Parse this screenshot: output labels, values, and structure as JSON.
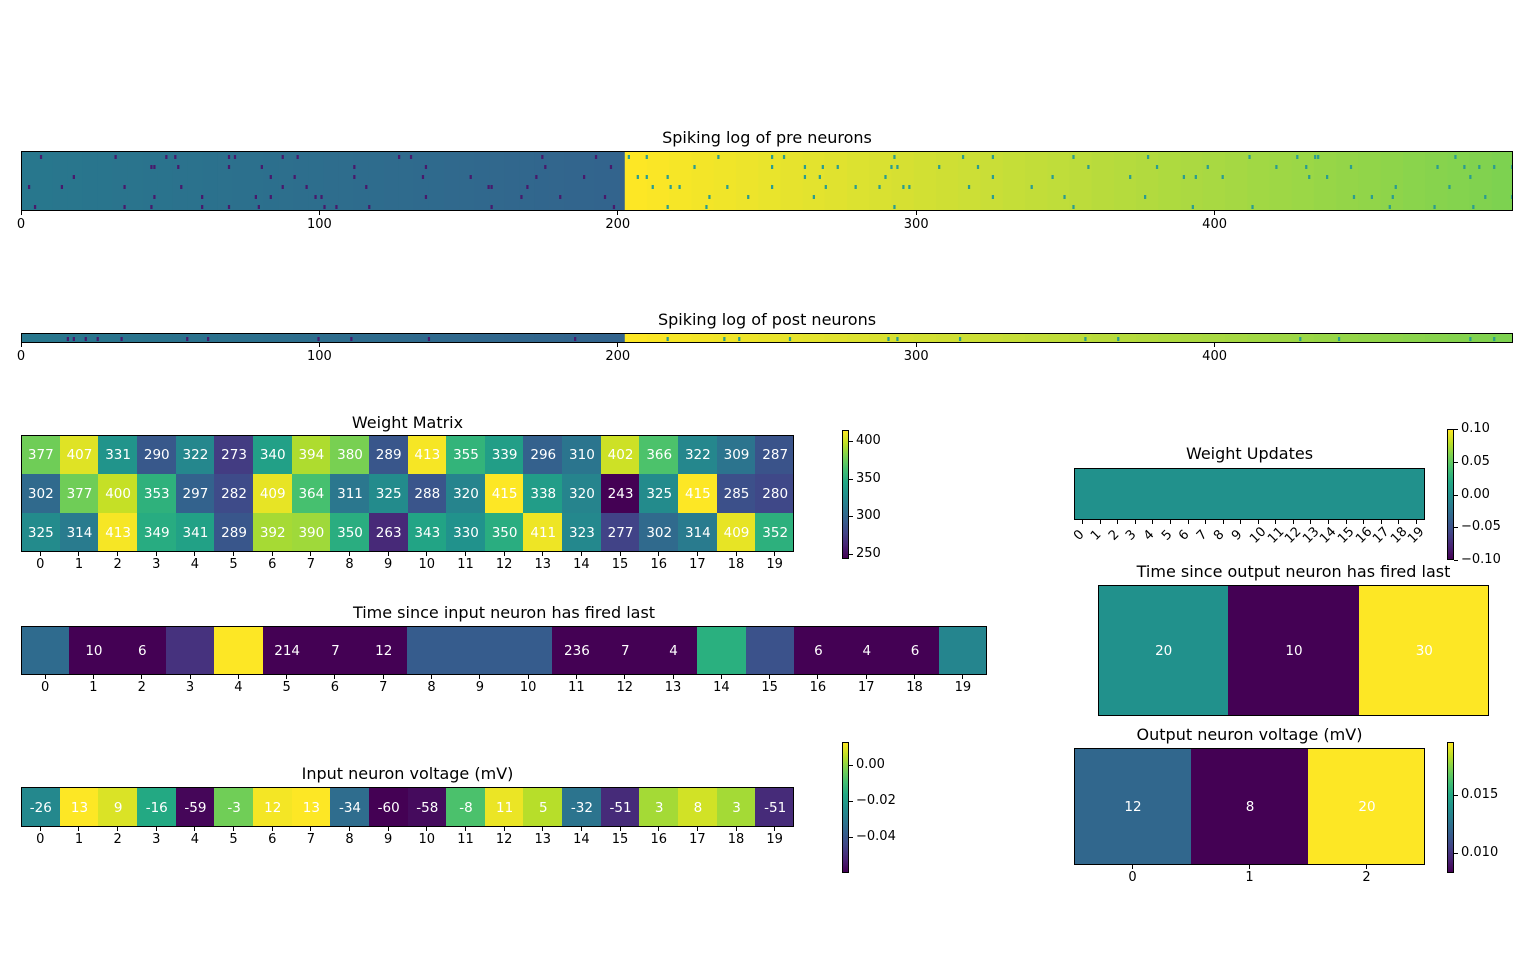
{
  "spike_pre": {
    "title": "Spiking log of pre neurons",
    "xticks": [
      "0",
      "100",
      "200",
      "300",
      "400"
    ],
    "xtick_values": [
      0,
      100,
      200,
      300,
      400
    ],
    "x_range": [
      0,
      500
    ],
    "rows": 6,
    "regions": [
      {
        "from": 0,
        "to": 202,
        "color_start": "#28778d",
        "color_end": "#33638d",
        "spike_color": "#481a6c"
      },
      {
        "from": 202,
        "to": 500,
        "color_start": "#fde725",
        "color_end": "#7ad151",
        "spike_color": "#2a9d8f"
      }
    ]
  },
  "spike_post": {
    "title": "Spiking log of post neurons",
    "xticks": [
      "0",
      "100",
      "200",
      "300",
      "400"
    ],
    "xtick_values": [
      0,
      100,
      200,
      300,
      400
    ],
    "x_range": [
      0,
      500
    ],
    "rows": 1,
    "regions": [
      {
        "from": 0,
        "to": 202,
        "color_start": "#28778d",
        "color_end": "#33638d",
        "spike_color": "#481a6c"
      },
      {
        "from": 202,
        "to": 500,
        "color_start": "#fde725",
        "color_end": "#7ad151",
        "spike_color": "#2a9d8f"
      }
    ]
  },
  "chart_data": [
    {
      "type": "heatmap",
      "title": "Weight Matrix",
      "x": [
        "0",
        "1",
        "2",
        "3",
        "4",
        "5",
        "6",
        "7",
        "8",
        "9",
        "10",
        "11",
        "12",
        "13",
        "14",
        "15",
        "16",
        "17",
        "18",
        "19"
      ],
      "values": [
        [
          377,
          407,
          331,
          290,
          322,
          273,
          340,
          394,
          380,
          289,
          413,
          355,
          339,
          296,
          310,
          402,
          366,
          322,
          309,
          287
        ],
        [
          302,
          377,
          400,
          353,
          297,
          282,
          409,
          364,
          311,
          325,
          288,
          320,
          415,
          338,
          320,
          243,
          325,
          415,
          285,
          280
        ],
        [
          325,
          314,
          413,
          349,
          341,
          289,
          392,
          390,
          350,
          263,
          343,
          330,
          350,
          411,
          323,
          277,
          302,
          314,
          409,
          352
        ]
      ],
      "vmin": 243,
      "vmax": 415,
      "colorbar_ticks": [
        "400",
        "350",
        "300",
        "250"
      ],
      "colorbar_tick_values": [
        400,
        350,
        300,
        250
      ]
    },
    {
      "type": "heatmap",
      "title": "Time since input neuron has fired last",
      "x": [
        "0",
        "1",
        "2",
        "3",
        "4",
        "5",
        "6",
        "7",
        "8",
        "9",
        "10",
        "11",
        "12",
        "13",
        "14",
        "15",
        "16",
        "17",
        "18",
        "19"
      ],
      "values": [
        [
          null,
          10,
          6,
          null,
          null,
          214,
          7,
          12,
          null,
          null,
          null,
          236,
          7,
          4,
          null,
          null,
          6,
          4,
          6,
          null
        ]
      ],
      "cell_colors": [
        "#2f6b8e",
        "#440154",
        "#440154",
        "#46327e",
        "#fde725",
        "#440154",
        "#440154",
        "#440154",
        "#365c8d",
        "#365c8d",
        "#365c8d",
        "#440154",
        "#440154",
        "#440154",
        "#2ab07f",
        "#3b528b",
        "#440154",
        "#440154",
        "#440154",
        "#25858e"
      ]
    },
    {
      "type": "heatmap",
      "title": "Input neuron voltage (mV)",
      "x": [
        "0",
        "1",
        "2",
        "3",
        "4",
        "5",
        "6",
        "7",
        "8",
        "9",
        "10",
        "11",
        "12",
        "13",
        "14",
        "15",
        "16",
        "17",
        "18",
        "19"
      ],
      "values": [
        [
          -26,
          13,
          9,
          -16,
          -59,
          -3,
          12,
          13,
          -34,
          -60,
          -58,
          -8,
          11,
          5,
          -32,
          -51,
          3,
          8,
          3,
          -51
        ]
      ],
      "vmin": -60,
      "vmax": 13,
      "colorbar_ticks": [
        "0.00",
        "−0.02",
        "−0.04"
      ],
      "colorbar_tick_values": [
        0.0,
        -0.02,
        -0.04
      ],
      "colorbar_range": [
        -0.06,
        0.013
      ]
    },
    {
      "type": "heatmap",
      "title": "Weight Updates",
      "x": [
        "0",
        "1",
        "2",
        "3",
        "4",
        "5",
        "6",
        "7",
        "8",
        "9",
        "10",
        "11",
        "12",
        "13",
        "14",
        "15",
        "16",
        "17",
        "18",
        "19"
      ],
      "values": [
        [
          0,
          0,
          0,
          0,
          0,
          0,
          0,
          0,
          0,
          0,
          0,
          0,
          0,
          0,
          0,
          0,
          0,
          0,
          0,
          0
        ]
      ],
      "vmin": -0.1,
      "vmax": 0.1,
      "colorbar_ticks": [
        "0.10",
        "0.05",
        "0.00",
        "−0.05",
        "−0.10"
      ],
      "colorbar_tick_values": [
        0.1,
        0.05,
        0.0,
        -0.05,
        -0.1
      ]
    },
    {
      "type": "heatmap",
      "title": "Time since output neuron has fired last",
      "values": [
        [
          20,
          10,
          30
        ]
      ],
      "vmin": 10,
      "vmax": 30
    },
    {
      "type": "heatmap",
      "title": "Output neuron voltage (mV)",
      "x": [
        "0",
        "1",
        "2"
      ],
      "values": [
        [
          12,
          8,
          20
        ]
      ],
      "vmin": 8,
      "vmax": 20,
      "colorbar_ticks": [
        "0.015",
        "0.010"
      ],
      "colorbar_tick_values": [
        0.015,
        0.01
      ],
      "colorbar_range": [
        0.0083,
        0.0195
      ]
    }
  ]
}
